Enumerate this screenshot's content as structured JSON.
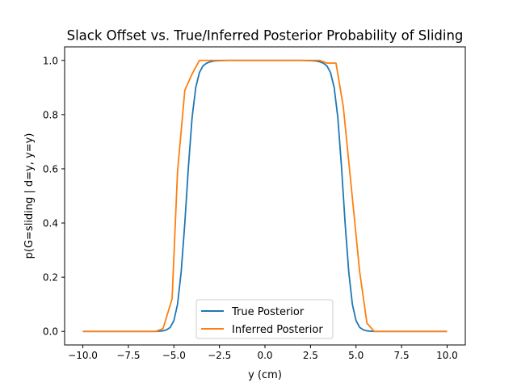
{
  "chart_data": {
    "type": "line",
    "title": "Slack Offset vs. True/Inferred Posterior Probability of Sliding",
    "xlabel": "y (cm)",
    "ylabel": "p(G=sliding | d=y, y=y)",
    "xlim": [
      -11.0,
      11.0
    ],
    "ylim": [
      -0.05,
      1.05
    ],
    "xticks": [
      -10.0,
      -7.5,
      -5.0,
      -2.5,
      0.0,
      2.5,
      5.0,
      7.5,
      10.0
    ],
    "xtick_labels": [
      "−10.0",
      "−7.5",
      "−5.0",
      "−2.5",
      "0.0",
      "2.5",
      "5.0",
      "7.5",
      "10.0"
    ],
    "yticks": [
      0.0,
      0.2,
      0.4,
      0.6,
      0.8,
      1.0
    ],
    "ytick_labels": [
      "0.0",
      "0.2",
      "0.4",
      "0.6",
      "0.8",
      "1.0"
    ],
    "grid": false,
    "legend_position": "bottom-center",
    "series": [
      {
        "name": "True Posterior",
        "color": "#1f77b4",
        "x": [
          -10.0,
          -8.0,
          -6.0,
          -5.6,
          -5.4,
          -5.2,
          -5.0,
          -4.8,
          -4.6,
          -4.4,
          -4.2,
          -4.0,
          -3.8,
          -3.6,
          -3.4,
          -3.2,
          -3.0,
          -2.8,
          -2.5,
          -2.0,
          -1.0,
          0.0,
          1.0,
          2.0,
          2.5,
          2.8,
          3.0,
          3.2,
          3.4,
          3.6,
          3.8,
          4.0,
          4.2,
          4.4,
          4.6,
          4.8,
          5.0,
          5.2,
          5.4,
          5.6,
          6.0,
          8.0,
          10.0
        ],
        "y": [
          0.0,
          0.0,
          0.0,
          0.002,
          0.006,
          0.015,
          0.04,
          0.1,
          0.22,
          0.4,
          0.61,
          0.79,
          0.9,
          0.955,
          0.98,
          0.99,
          0.995,
          0.998,
          0.999,
          1.0,
          1.0,
          1.0,
          1.0,
          1.0,
          0.999,
          0.998,
          0.995,
          0.99,
          0.98,
          0.955,
          0.9,
          0.79,
          0.61,
          0.4,
          0.22,
          0.1,
          0.04,
          0.015,
          0.006,
          0.002,
          0.0,
          0.0,
          0.0
        ]
      },
      {
        "name": "Inferred Posterior",
        "color": "#ff7f0e",
        "x": [
          -10.0,
          -6.0,
          -5.6,
          -5.1,
          -4.8,
          -4.4,
          -4.0,
          -3.6,
          -3.0,
          -2.0,
          0.0,
          2.0,
          3.0,
          3.4,
          3.9,
          4.3,
          4.7,
          5.2,
          5.6,
          6.0,
          10.0
        ],
        "y": [
          0.0,
          0.0,
          0.01,
          0.12,
          0.59,
          0.89,
          0.95,
          1.0,
          1.0,
          1.0,
          1.0,
          1.0,
          1.0,
          0.99,
          0.99,
          0.83,
          0.56,
          0.22,
          0.03,
          0.0,
          0.0
        ]
      }
    ]
  }
}
